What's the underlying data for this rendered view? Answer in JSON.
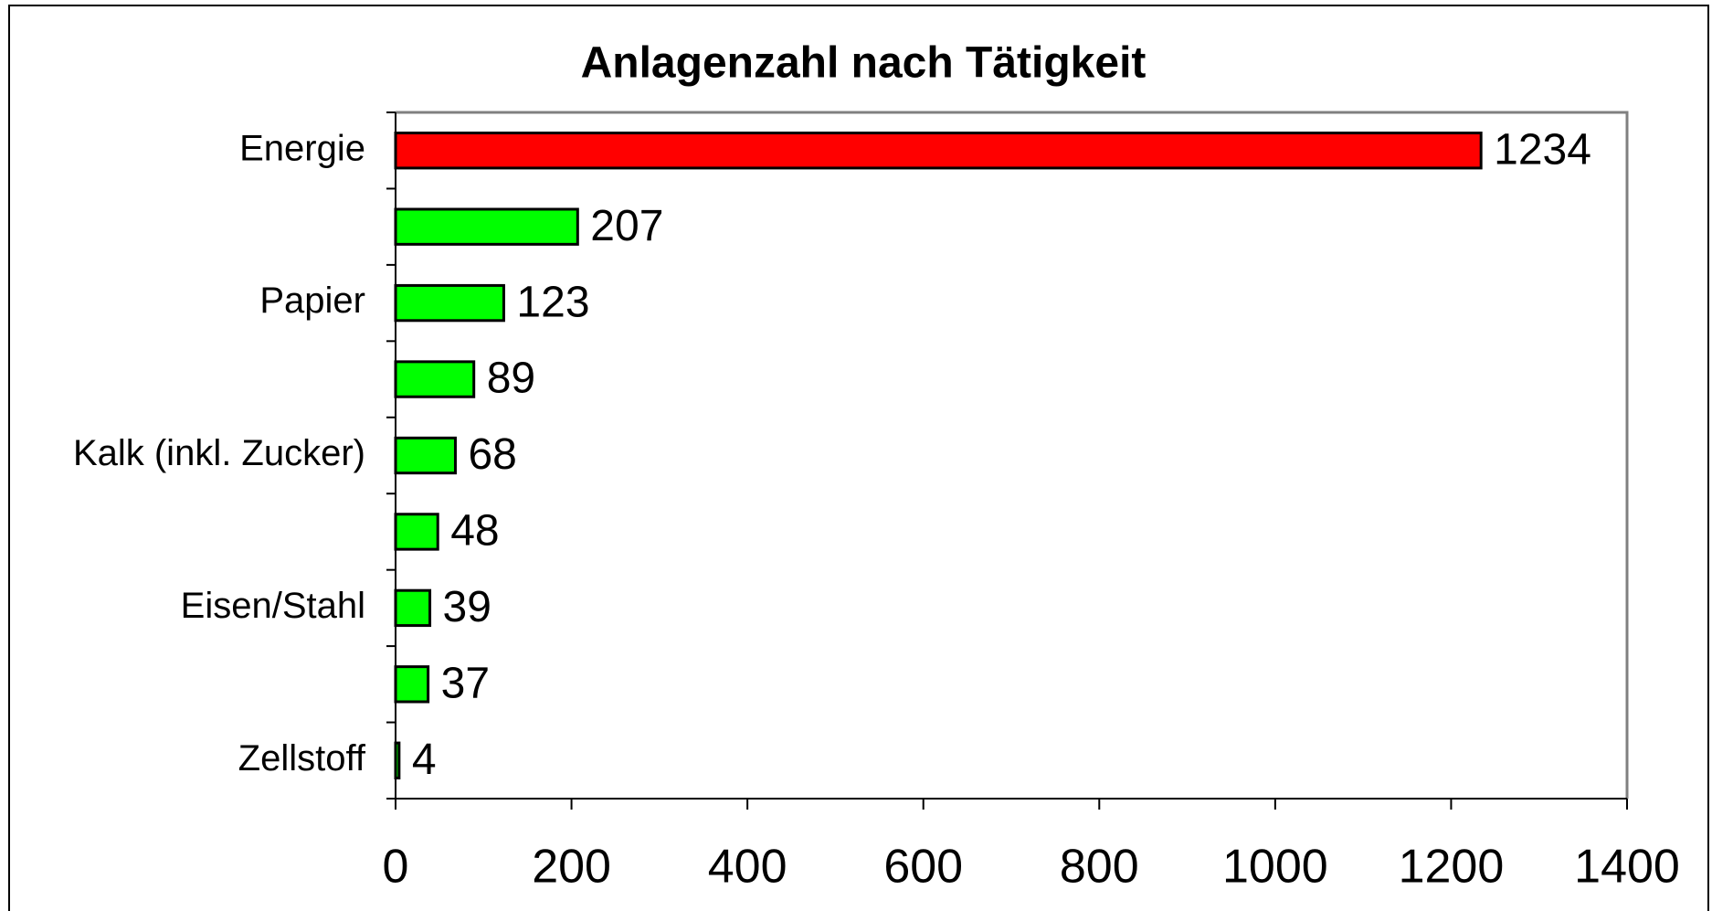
{
  "chart_data": {
    "type": "bar",
    "orientation": "horizontal",
    "title": "Anlagenzahl nach Tätigkeit",
    "categories": [
      "Energie",
      null,
      "Papier",
      null,
      "Kalk (inkl. Zucker)",
      null,
      "Eisen/Stahl",
      null,
      "Zellstoff"
    ],
    "values": [
      1234,
      207,
      123,
      89,
      68,
      48,
      39,
      37,
      4
    ],
    "colors": [
      "#ff0000",
      "#00ff00",
      "#00ff00",
      "#00ff00",
      "#00ff00",
      "#00ff00",
      "#00ff00",
      "#00ff00",
      "#00ff00"
    ],
    "xlim": [
      0,
      1400
    ],
    "xticks": [
      0,
      200,
      400,
      600,
      800,
      1000,
      1200,
      1400
    ],
    "grid": false
  }
}
